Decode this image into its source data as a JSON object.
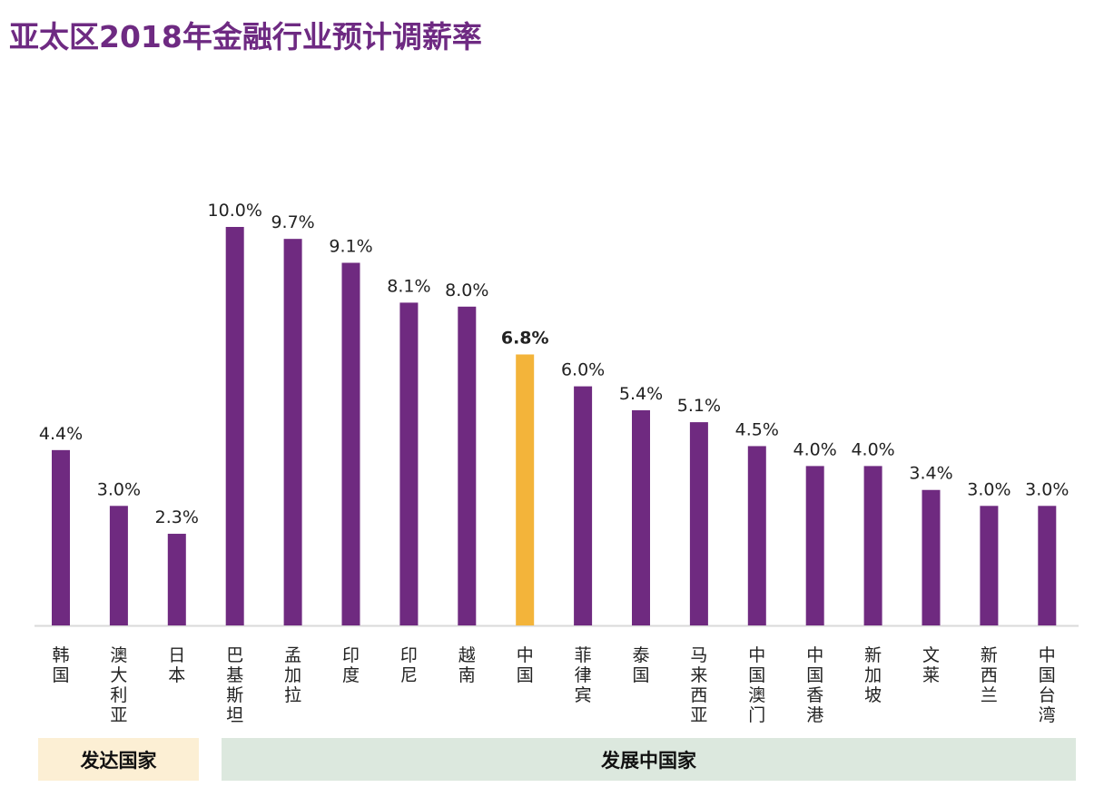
{
  "chart_data": {
    "type": "bar",
    "title": "亚太区2018年金融行业预计调薪率",
    "categories": [
      "韩国",
      "澳大利亚",
      "日本",
      "巴基斯坦",
      "孟加拉",
      "印度",
      "印尼",
      "越南",
      "中国",
      "菲律宾",
      "泰国",
      "马来西亚",
      "中国澳门",
      "中国香港",
      "新加坡",
      "文莱",
      "新西兰",
      "中国台湾"
    ],
    "values": [
      4.4,
      3.0,
      2.3,
      10.0,
      9.7,
      9.1,
      8.1,
      8.0,
      6.8,
      6.0,
      5.4,
      5.1,
      4.5,
      4.0,
      4.0,
      3.4,
      3.0,
      3.0
    ],
    "data_labels": [
      "4.4%",
      "3.0%",
      "2.3%",
      "10.0%",
      "9.7%",
      "9.1%",
      "8.1%",
      "8.0%",
      "6.8%",
      "6.0%",
      "5.4%",
      "5.1%",
      "4.5%",
      "4.0%",
      "4.0%",
      "3.4%",
      "3.0%",
      "3.0%"
    ],
    "highlight_category": "中国",
    "ylim": [
      0,
      10.5
    ],
    "grid": false,
    "colors": {
      "bar": "#6f2a80",
      "highlight": "#f3b43a",
      "title": "#6e2a82",
      "axis": "#d9d9d9"
    },
    "groups": [
      {
        "label": "发达国家",
        "categories": [
          "韩国",
          "澳大利亚",
          "日本"
        ],
        "color": "#fcefd4"
      },
      {
        "label": "发展中国家",
        "categories": [
          "巴基斯坦",
          "孟加拉",
          "印度",
          "印尼",
          "越南",
          "中国",
          "菲律宾",
          "泰国",
          "马来西亚",
          "中国澳门",
          "中国香港",
          "新加坡",
          "文莱",
          "新西兰",
          "中国台湾"
        ],
        "color": "#dce8de"
      }
    ]
  }
}
